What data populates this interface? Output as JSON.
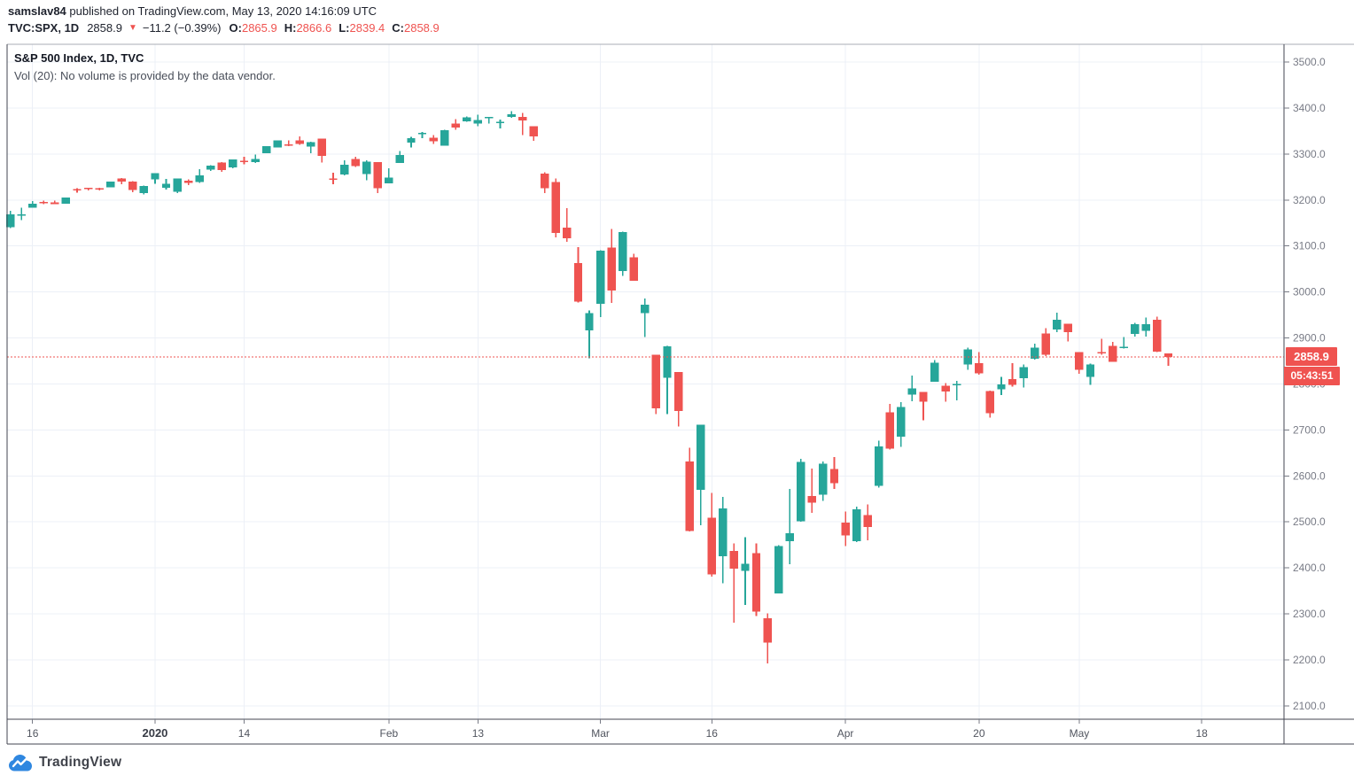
{
  "header": {
    "line1": {
      "username": "samslav84",
      "rest": " published on TradingView.com, May 13, 2020 14:16:09 UTC"
    },
    "line2": {
      "symbol": "TVC:SPX, 1D",
      "last": "2858.9",
      "direction_icon": "▼",
      "change": "−11.2 (−0.39%)",
      "o_label": "O:",
      "o": "2865.9",
      "h_label": "H:",
      "h": "2866.6",
      "l_label": "L:",
      "l": "2839.4",
      "c_label": "C:",
      "c": "2858.9"
    }
  },
  "legend": {
    "title": "S&P 500 Index, 1D, TVC",
    "volume_note": "Vol (20): No volume is provided by the data vendor."
  },
  "price_axis": {
    "last_price_label": "2858.9",
    "countdown_label": "05:43:51"
  },
  "logo": {
    "text": "TradingView"
  },
  "colors": {
    "up": "#26a69a",
    "down": "#ef5350",
    "grid": "#ecf0f7",
    "border": "#434651",
    "border_light": "#aaaeb6",
    "axis_tick": "#787b86",
    "axis_text": "#787b86",
    "time_text": "#51555f",
    "time_text_bold": "#383c46",
    "tag_bg": "#ef5350",
    "logo_blue": "#2f87e0"
  },
  "chart_data": {
    "type": "candlestick",
    "title": "S&P 500 Index, 1D, TVC",
    "symbol": "TVC:SPX",
    "interval": "1D",
    "last_price": 2858.9,
    "ylim": [
      2050,
      3540
    ],
    "price_ticks": [
      3500,
      3400,
      3300,
      3200,
      3100,
      3000,
      2900,
      2800,
      2700,
      2600,
      2500,
      2400,
      2300,
      2200,
      2100
    ],
    "time_ticks": [
      {
        "label": "16",
        "index": 2,
        "bold": false
      },
      {
        "label": "2020",
        "index": 13,
        "bold": true
      },
      {
        "label": "14",
        "index": 21,
        "bold": false
      },
      {
        "label": "Feb",
        "index": 34,
        "bold": false
      },
      {
        "label": "13",
        "index": 42,
        "bold": false
      },
      {
        "label": "Mar",
        "index": 53,
        "bold": false
      },
      {
        "label": "16",
        "index": 63,
        "bold": false
      },
      {
        "label": "Apr",
        "index": 75,
        "bold": false
      },
      {
        "label": "20",
        "index": 87,
        "bold": false
      },
      {
        "label": "May",
        "index": 96,
        "bold": false
      },
      {
        "label": "18",
        "index": 107,
        "bold": false
      }
    ],
    "candles_format": [
      "date",
      "open",
      "high",
      "low",
      "close"
    ],
    "candles": [
      [
        "2019-12-12",
        3141.2,
        3176.3,
        3138.5,
        3168.6
      ],
      [
        "2019-12-13",
        3166.7,
        3182.7,
        3156.5,
        3168.8
      ],
      [
        "2019-12-16",
        3183.6,
        3197.7,
        3183.6,
        3191.5
      ],
      [
        "2019-12-17",
        3195.4,
        3198.2,
        3191.0,
        3192.5
      ],
      [
        "2019-12-18",
        3195.2,
        3198.5,
        3191.1,
        3191.1
      ],
      [
        "2019-12-19",
        3192.3,
        3205.5,
        3192.3,
        3205.4
      ],
      [
        "2019-12-20",
        3223.4,
        3225.7,
        3216.0,
        3221.2
      ],
      [
        "2019-12-23",
        3226.1,
        3226.4,
        3220.5,
        3224.0
      ],
      [
        "2019-12-24",
        3225.4,
        3226.3,
        3220.5,
        3223.4
      ],
      [
        "2019-12-26",
        3227.2,
        3240.1,
        3227.2,
        3239.9
      ],
      [
        "2019-12-27",
        3247.2,
        3247.9,
        3234.4,
        3240.0
      ],
      [
        "2019-12-30",
        3240.1,
        3240.9,
        3216.6,
        3221.3
      ],
      [
        "2019-12-31",
        3215.2,
        3231.7,
        3212.0,
        3230.8
      ],
      [
        "2020-01-02",
        3244.7,
        3258.1,
        3235.5,
        3257.9
      ],
      [
        "2020-01-03",
        3226.4,
        3246.2,
        3222.3,
        3234.9
      ],
      [
        "2020-01-06",
        3217.6,
        3246.8,
        3214.6,
        3246.3
      ],
      [
        "2020-01-07",
        3241.9,
        3244.9,
        3232.4,
        3237.2
      ],
      [
        "2020-01-08",
        3238.6,
        3267.1,
        3236.7,
        3253.1
      ],
      [
        "2020-01-09",
        3266.0,
        3275.6,
        3263.3,
        3274.7
      ],
      [
        "2020-01-10",
        3281.8,
        3282.1,
        3260.9,
        3265.4
      ],
      [
        "2020-01-13",
        3271.1,
        3288.1,
        3268.4,
        3288.1
      ],
      [
        "2020-01-14",
        3285.3,
        3294.2,
        3277.2,
        3283.2
      ],
      [
        "2020-01-15",
        3282.3,
        3298.7,
        3280.7,
        3289.3
      ],
      [
        "2020-01-16",
        3302.0,
        3317.1,
        3302.0,
        3316.8
      ],
      [
        "2020-01-17",
        3313.8,
        3329.9,
        3313.8,
        3329.6
      ],
      [
        "2020-01-21",
        3321.0,
        3329.8,
        3316.6,
        3320.8
      ],
      [
        "2020-01-22",
        3330.0,
        3337.8,
        3320.0,
        3321.8
      ],
      [
        "2020-01-23",
        3315.8,
        3326.9,
        3301.9,
        3325.5
      ],
      [
        "2020-01-24",
        3333.1,
        3333.2,
        3281.5,
        3295.5
      ],
      [
        "2020-01-27",
        3247.2,
        3258.9,
        3234.5,
        3243.6
      ],
      [
        "2020-01-28",
        3255.4,
        3285.8,
        3253.2,
        3276.2
      ],
      [
        "2020-01-29",
        3289.5,
        3293.5,
        3271.9,
        3273.4
      ],
      [
        "2020-01-30",
        3256.5,
        3285.9,
        3242.8,
        3283.7
      ],
      [
        "2020-01-31",
        3282.3,
        3282.3,
        3214.7,
        3225.5
      ],
      [
        "2020-02-03",
        3235.7,
        3268.4,
        3235.7,
        3248.9
      ],
      [
        "2020-02-04",
        3280.6,
        3306.9,
        3280.6,
        3297.6
      ],
      [
        "2020-02-05",
        3324.9,
        3337.6,
        3313.8,
        3334.7
      ],
      [
        "2020-02-06",
        3344.9,
        3348.0,
        3334.4,
        3345.8
      ],
      [
        "2020-02-07",
        3335.5,
        3341.4,
        3322.1,
        3327.7
      ],
      [
        "2020-02-10",
        3318.3,
        3352.3,
        3317.8,
        3352.1
      ],
      [
        "2020-02-11",
        3365.9,
        3375.6,
        3352.7,
        3357.8
      ],
      [
        "2020-02-12",
        3370.5,
        3381.5,
        3369.7,
        3379.5
      ],
      [
        "2020-02-13",
        3365.9,
        3385.1,
        3360.5,
        3373.9
      ],
      [
        "2020-02-14",
        3378.1,
        3380.7,
        3366.2,
        3380.2
      ],
      [
        "2020-02-18",
        3369.0,
        3375.0,
        3355.6,
        3370.3
      ],
      [
        "2020-02-19",
        3380.4,
        3393.5,
        3378.8,
        3386.2
      ],
      [
        "2020-02-20",
        3380.5,
        3389.2,
        3341.0,
        3373.2
      ],
      [
        "2020-02-21",
        3360.5,
        3360.8,
        3328.4,
        3337.8
      ],
      [
        "2020-02-24",
        3257.6,
        3259.8,
        3214.7,
        3225.9
      ],
      [
        "2020-02-25",
        3238.9,
        3247.0,
        3118.8,
        3128.2
      ],
      [
        "2020-02-26",
        3139.9,
        3182.5,
        3109.0,
        3116.4
      ],
      [
        "2020-02-27",
        3062.5,
        3097.1,
        2977.4,
        2978.8
      ],
      [
        "2020-02-28",
        2916.9,
        2959.7,
        2855.8,
        2954.2
      ],
      [
        "2020-03-02",
        2974.3,
        3091.0,
        2945.2,
        3090.2
      ],
      [
        "2020-03-03",
        3096.5,
        3136.7,
        2976.6,
        3003.4
      ],
      [
        "2020-03-04",
        3045.8,
        3131.0,
        3034.4,
        3130.1
      ],
      [
        "2020-03-05",
        3075.7,
        3083.0,
        3024.2,
        3023.9
      ],
      [
        "2020-03-06",
        2954.2,
        2985.9,
        2901.5,
        2972.4
      ],
      [
        "2020-03-09",
        2863.9,
        2863.9,
        2734.4,
        2746.6
      ],
      [
        "2020-03-10",
        2813.5,
        2882.6,
        2734.0,
        2882.2
      ],
      [
        "2020-03-11",
        2825.6,
        2825.6,
        2707.2,
        2741.4
      ],
      [
        "2020-03-12",
        2630.9,
        2661.0,
        2478.9,
        2480.6
      ],
      [
        "2020-03-13",
        2570.0,
        2711.3,
        2492.4,
        2711.0
      ],
      [
        "2020-03-16",
        2508.6,
        2563.0,
        2380.9,
        2386.1
      ],
      [
        "2020-03-17",
        2425.7,
        2553.9,
        2367.0,
        2529.2
      ],
      [
        "2020-03-18",
        2436.5,
        2453.6,
        2280.5,
        2398.1
      ],
      [
        "2020-03-19",
        2393.5,
        2467.0,
        2319.8,
        2409.4
      ],
      [
        "2020-03-20",
        2431.9,
        2453.0,
        2295.6,
        2304.9
      ],
      [
        "2020-03-23",
        2290.7,
        2300.7,
        2191.9,
        2237.4
      ],
      [
        "2020-03-24",
        2344.4,
        2449.7,
        2344.4,
        2447.3
      ],
      [
        "2020-03-25",
        2457.8,
        2571.4,
        2407.5,
        2475.6
      ],
      [
        "2020-03-26",
        2501.3,
        2637.0,
        2500.7,
        2630.1
      ],
      [
        "2020-03-27",
        2555.9,
        2615.9,
        2520.0,
        2541.5
      ],
      [
        "2020-03-30",
        2559.0,
        2631.8,
        2545.3,
        2626.7
      ],
      [
        "2020-03-31",
        2614.7,
        2641.4,
        2571.2,
        2584.6
      ],
      [
        "2020-04-01",
        2498.1,
        2522.8,
        2447.5,
        2470.5
      ],
      [
        "2020-04-02",
        2458.5,
        2533.2,
        2455.8,
        2526.9
      ],
      [
        "2020-04-03",
        2514.9,
        2538.2,
        2460.0,
        2488.7
      ],
      [
        "2020-04-06",
        2578.3,
        2676.9,
        2574.6,
        2663.7
      ],
      [
        "2020-04-07",
        2738.7,
        2756.9,
        2657.7,
        2659.4
      ],
      [
        "2020-04-08",
        2685.0,
        2760.8,
        2663.3,
        2750.0
      ],
      [
        "2020-04-09",
        2777.0,
        2818.6,
        2762.4,
        2789.8
      ],
      [
        "2020-04-13",
        2782.5,
        2782.5,
        2721.2,
        2761.6
      ],
      [
        "2020-04-14",
        2805.1,
        2851.9,
        2805.1,
        2846.1
      ],
      [
        "2020-04-15",
        2795.6,
        2801.9,
        2761.5,
        2783.4
      ],
      [
        "2020-04-16",
        2799.3,
        2806.5,
        2764.3,
        2799.6
      ],
      [
        "2020-04-17",
        2842.4,
        2879.2,
        2830.9,
        2874.6
      ],
      [
        "2020-04-20",
        2845.6,
        2868.9,
        2820.4,
        2823.2
      ],
      [
        "2020-04-21",
        2784.9,
        2785.5,
        2727.1,
        2736.6
      ],
      [
        "2020-04-22",
        2787.9,
        2815.1,
        2776.0,
        2799.3
      ],
      [
        "2020-04-23",
        2810.4,
        2844.9,
        2794.3,
        2797.8
      ],
      [
        "2020-04-24",
        2812.6,
        2842.7,
        2791.8,
        2836.7
      ],
      [
        "2020-04-27",
        2854.7,
        2887.7,
        2852.9,
        2878.5
      ],
      [
        "2020-04-28",
        2910.0,
        2921.2,
        2860.7,
        2863.4
      ],
      [
        "2020-04-29",
        2918.5,
        2954.9,
        2912.2,
        2939.5
      ],
      [
        "2020-04-30",
        2930.9,
        2930.9,
        2892.5,
        2912.4
      ],
      [
        "2020-05-01",
        2869.1,
        2869.1,
        2821.6,
        2830.7
      ],
      [
        "2020-05-04",
        2815.0,
        2844.2,
        2797.9,
        2842.7
      ],
      [
        "2020-05-05",
        2868.9,
        2898.2,
        2863.5,
        2868.4
      ],
      [
        "2020-05-06",
        2883.1,
        2891.1,
        2847.7,
        2848.4
      ],
      [
        "2020-05-07",
        2878.0,
        2901.9,
        2876.5,
        2881.2
      ],
      [
        "2020-05-08",
        2908.8,
        2932.6,
        2902.9,
        2929.8
      ],
      [
        "2020-05-11",
        2915.5,
        2944.3,
        2903.4,
        2930.3
      ],
      [
        "2020-05-12",
        2939.5,
        2945.8,
        2869.6,
        2870.1
      ],
      [
        "2020-05-13",
        2865.9,
        2866.6,
        2839.4,
        2858.9
      ]
    ]
  }
}
